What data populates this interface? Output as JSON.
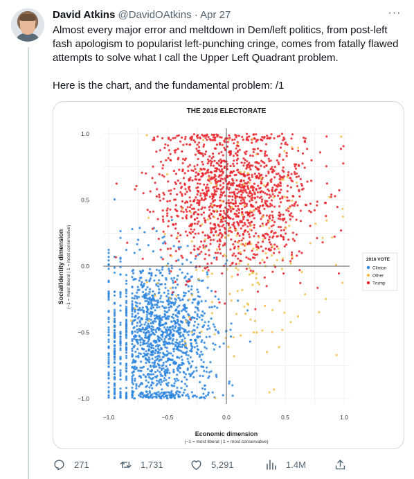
{
  "tweet": {
    "author_name": "David Atkins",
    "handle": "@DavidOAtkins",
    "separator": "·",
    "date": "Apr 27",
    "more_label": "···",
    "paragraphs": [
      "Almost every major error and meltdown in Dem/left politics, from post-left fash apologism to popularist left-punching cringe, comes from fatally flawed attempts to solve what I call the Upper Left Quadrant problem.",
      "Here is the chart, and the fundamental problem: /1"
    ],
    "stats": {
      "replies": "271",
      "retweets": "1,731",
      "likes": "5,291",
      "views": "1.4M"
    },
    "icons": [
      "reply-icon",
      "retweet-icon",
      "like-icon",
      "views-icon",
      "share-icon"
    ]
  },
  "chart_data": {
    "type": "scatter",
    "title": "THE 2016 ELECTORATE",
    "xlabel": "Economic dimension",
    "xlabel_note": "(−1 = most liberal | 1 = most conservative)",
    "ylabel": "Social/Identity dimension",
    "ylabel_note": "(−1 = most liberal | 1 = most conservative)",
    "xlim": [
      -1.0,
      1.0
    ],
    "ylim": [
      -1.0,
      1.0
    ],
    "xticks": [
      "−1.0",
      "−0.5",
      "0.0",
      "0.5",
      "1.0"
    ],
    "yticks": [
      "1.0",
      "0.5",
      "0.0",
      "−0.5",
      "−1.0"
    ],
    "grid": true,
    "legend_title": "2016 VOTE",
    "legend_position": "right",
    "series": [
      {
        "name": "Clinton",
        "color": "#2f86de",
        "center": [
          -0.6,
          -0.55
        ],
        "spread": [
          0.24,
          0.3
        ],
        "count": 1500
      },
      {
        "name": "Other",
        "color": "#f2c14e",
        "center": [
          0.15,
          0.1
        ],
        "spread": [
          0.35,
          0.45
        ],
        "count": 180
      },
      {
        "name": "Trump",
        "color": "#e8242b",
        "center": [
          0.05,
          0.55
        ],
        "spread": [
          0.32,
          0.28
        ],
        "count": 1400
      }
    ]
  }
}
